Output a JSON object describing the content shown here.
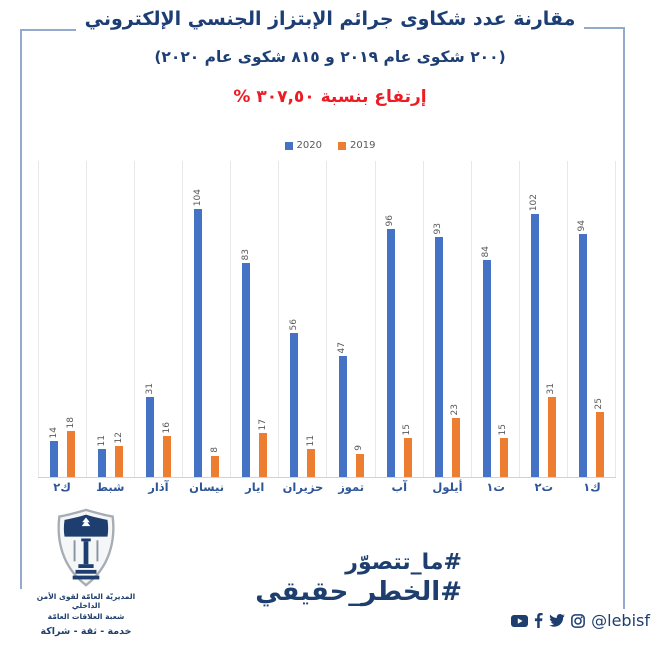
{
  "header": {
    "title": "مقارنة عدد شكاوى جرائم الإبتزاز الجنسي الإلكتروني",
    "subtitle": "(٢٠٠ شكوى عام ٢٠١٩ و ٨١٥ شكوى عام ٢٠٢٠)",
    "highlight": "إرتفاع بنسبة ٣٠٧,٥٠ %"
  },
  "chart_data": {
    "type": "bar",
    "title": "مقارنة عدد شكاوى جرائم الإبتزاز الجنسي الإلكتروني",
    "categories": [
      "ك٢",
      "شبط",
      "آذار",
      "نيسان",
      "ايار",
      "حزيران",
      "تموز",
      "آب",
      "أيلول",
      "ت١",
      "ت٢",
      "ك١"
    ],
    "series": [
      {
        "name": "2020",
        "color": "#4472C4",
        "values": [
          14,
          11,
          31,
          104,
          83,
          56,
          47,
          96,
          93,
          84,
          102,
          94
        ]
      },
      {
        "name": "2019",
        "color": "#ED7D31",
        "values": [
          18,
          12,
          16,
          8,
          17,
          11,
          9,
          15,
          23,
          15,
          31,
          25
        ]
      }
    ],
    "totals": {
      "2020": 815,
      "2019": 200
    },
    "increase_percent_label": "٣٠٧,٥٠ %",
    "ylim": [
      0,
      110
    ],
    "grid": "vertical-column-separators",
    "legend_position": "top",
    "data_labels": "rotated-vertical"
  },
  "footer": {
    "logo_caption_line1": "المديريّة العامّة لقوى الأمن الداخلي",
    "logo_caption_line2": "شعبة العلاقات العامّة",
    "logo_caption_line3": "خدمة - ثقة - شراكة",
    "hashtag_line1": "#ما_تتصوّر",
    "hashtag_line2": "#الخطر_حقيقي",
    "social_handle": "@lebisf",
    "social_icons": [
      "youtube-icon",
      "facebook-icon",
      "twitter-icon",
      "instagram-icon"
    ]
  },
  "colors": {
    "bar_2020": "#4472C4",
    "bar_2019": "#ED7D31",
    "navy_text": "#1C3E74",
    "red_text": "#EC1C24",
    "month_label": "#2D5698",
    "bracket_line": "#94A9CD",
    "data_label": "#595959"
  }
}
